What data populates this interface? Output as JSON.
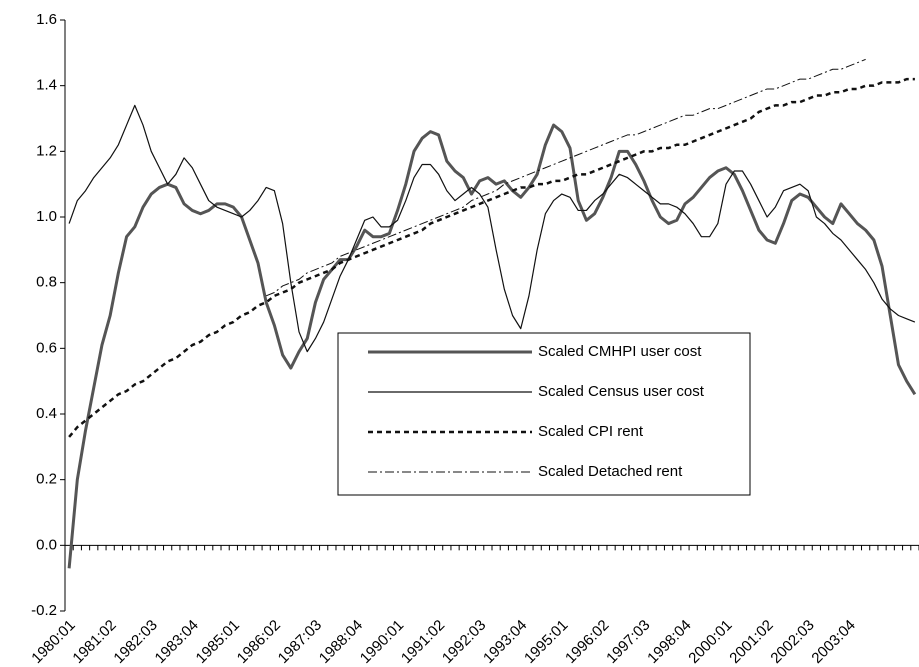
{
  "chart_data": {
    "type": "line",
    "categories": [
      "1980:01",
      null,
      null,
      null,
      null,
      "1981:02",
      null,
      null,
      null,
      null,
      "1982:03",
      null,
      null,
      null,
      null,
      "1983:04",
      null,
      null,
      null,
      null,
      "1985:01",
      null,
      null,
      null,
      null,
      "1986:02",
      null,
      null,
      null,
      null,
      "1987:03",
      null,
      null,
      null,
      null,
      "1988:04",
      null,
      null,
      null,
      null,
      "1990:01",
      null,
      null,
      null,
      null,
      "1991:02",
      null,
      null,
      null,
      null,
      "1992:03",
      null,
      null,
      null,
      null,
      "1993:04",
      null,
      null,
      null,
      null,
      "1995:01",
      null,
      null,
      null,
      null,
      "1996:02",
      null,
      null,
      null,
      null,
      "1997:03",
      null,
      null,
      null,
      null,
      "1998:04",
      null,
      null,
      null,
      null,
      "2000:01",
      null,
      null,
      null,
      null,
      "2001:02",
      null,
      null,
      null,
      null,
      "2002:03",
      null,
      null,
      null,
      null,
      "2003:04",
      null,
      null,
      null,
      null,
      null,
      null,
      null,
      null
    ],
    "series": [
      {
        "name": "Scaled CMHPI user cost",
        "color": "#555555",
        "linewidth": 3,
        "linestyle": "solid",
        "values": [
          -0.07,
          0.2,
          0.35,
          0.48,
          0.61,
          0.7,
          0.83,
          0.94,
          0.97,
          1.03,
          1.07,
          1.09,
          1.1,
          1.09,
          1.04,
          1.02,
          1.01,
          1.02,
          1.04,
          1.04,
          1.03,
          1.0,
          0.93,
          0.86,
          0.74,
          0.67,
          0.58,
          0.54,
          0.59,
          0.63,
          0.74,
          0.81,
          0.84,
          0.87,
          0.87,
          0.91,
          0.96,
          0.94,
          0.94,
          0.95,
          1.02,
          1.1,
          1.2,
          1.24,
          1.26,
          1.25,
          1.17,
          1.14,
          1.12,
          1.07,
          1.11,
          1.12,
          1.1,
          1.11,
          1.08,
          1.06,
          1.09,
          1.13,
          1.22,
          1.28,
          1.26,
          1.21,
          1.05,
          0.99,
          1.01,
          1.06,
          1.12,
          1.2,
          1.2,
          1.16,
          1.11,
          1.05,
          1.0,
          0.98,
          0.99,
          1.04,
          1.06,
          1.09,
          1.12,
          1.14,
          1.15,
          1.13,
          1.08,
          1.02,
          0.96,
          0.93,
          0.92,
          0.98,
          1.05,
          1.07,
          1.06,
          1.03,
          1.0,
          0.98,
          1.04,
          1.01,
          0.98,
          0.96,
          0.93,
          0.85,
          0.7,
          0.55,
          0.5,
          0.46
        ]
      },
      {
        "name": "Scaled Census user cost",
        "color": "#111111",
        "linewidth": 1.2,
        "linestyle": "solid",
        "values": [
          0.98,
          1.05,
          1.08,
          1.12,
          1.15,
          1.18,
          1.22,
          1.28,
          1.34,
          1.28,
          1.2,
          1.15,
          1.1,
          1.13,
          1.18,
          1.15,
          1.1,
          1.05,
          1.03,
          1.02,
          1.01,
          1.0,
          1.02,
          1.05,
          1.09,
          1.08,
          0.98,
          0.8,
          0.65,
          0.59,
          0.63,
          0.68,
          0.75,
          0.82,
          0.87,
          0.93,
          0.99,
          1.0,
          0.97,
          0.97,
          0.99,
          1.05,
          1.12,
          1.16,
          1.16,
          1.13,
          1.08,
          1.05,
          1.07,
          1.09,
          1.07,
          1.03,
          0.9,
          0.78,
          0.7,
          0.66,
          0.76,
          0.9,
          1.01,
          1.05,
          1.07,
          1.06,
          1.02,
          1.02,
          1.05,
          1.07,
          1.1,
          1.13,
          1.12,
          1.1,
          1.08,
          1.06,
          1.04,
          1.04,
          1.03,
          1.01,
          0.98,
          0.94,
          0.94,
          0.98,
          1.1,
          1.14,
          1.14,
          1.1,
          1.05,
          1.0,
          1.03,
          1.08,
          1.09,
          1.1,
          1.08,
          1.0,
          0.98,
          0.95,
          0.93,
          0.9,
          0.87,
          0.84,
          0.8,
          0.75,
          0.72,
          0.7,
          0.69,
          0.68
        ]
      },
      {
        "name": "Scaled CPI rent",
        "color": "#111111",
        "linewidth": 2.5,
        "linestyle": "dashed",
        "values": [
          0.33,
          0.36,
          0.38,
          0.4,
          0.42,
          0.44,
          0.46,
          0.47,
          0.49,
          0.5,
          0.52,
          0.54,
          0.56,
          0.57,
          0.59,
          0.61,
          0.62,
          0.64,
          0.65,
          0.67,
          0.68,
          0.7,
          0.71,
          0.73,
          0.74,
          0.76,
          0.77,
          0.78,
          0.8,
          0.81,
          0.82,
          0.83,
          0.84,
          0.86,
          0.87,
          0.88,
          0.89,
          0.9,
          0.91,
          0.92,
          0.93,
          0.94,
          0.95,
          0.96,
          0.98,
          0.99,
          1.0,
          1.01,
          1.02,
          1.03,
          1.04,
          1.05,
          1.06,
          1.07,
          1.08,
          1.09,
          1.09,
          1.1,
          1.1,
          1.11,
          1.11,
          1.12,
          1.13,
          1.13,
          1.14,
          1.15,
          1.16,
          1.17,
          1.18,
          1.19,
          1.2,
          1.2,
          1.21,
          1.21,
          1.22,
          1.22,
          1.23,
          1.24,
          1.25,
          1.26,
          1.27,
          1.28,
          1.29,
          1.3,
          1.32,
          1.33,
          1.34,
          1.34,
          1.35,
          1.35,
          1.36,
          1.37,
          1.37,
          1.38,
          1.38,
          1.39,
          1.39,
          1.4,
          1.4,
          1.41,
          1.41,
          1.41,
          1.42,
          1.42
        ]
      },
      {
        "name": "Scaled Detached rent",
        "color": "#111111",
        "linewidth": 1,
        "linestyle": "dash-dot",
        "values": [
          null,
          null,
          null,
          null,
          null,
          null,
          null,
          null,
          null,
          null,
          null,
          null,
          null,
          null,
          null,
          null,
          null,
          null,
          null,
          null,
          null,
          null,
          null,
          null,
          0.76,
          0.77,
          0.79,
          0.8,
          0.81,
          0.83,
          0.84,
          0.85,
          0.86,
          0.88,
          0.89,
          0.9,
          0.91,
          0.92,
          0.93,
          0.94,
          0.95,
          0.96,
          0.97,
          0.98,
          0.99,
          1.0,
          1.01,
          1.02,
          1.03,
          1.05,
          1.06,
          1.07,
          1.08,
          1.1,
          1.11,
          1.12,
          1.13,
          1.14,
          1.15,
          1.16,
          1.17,
          1.18,
          1.19,
          1.2,
          1.21,
          1.22,
          1.23,
          1.24,
          1.25,
          1.25,
          1.26,
          1.27,
          1.28,
          1.29,
          1.3,
          1.31,
          1.31,
          1.32,
          1.33,
          1.33,
          1.34,
          1.35,
          1.36,
          1.37,
          1.38,
          1.39,
          1.39,
          1.4,
          1.41,
          1.42,
          1.42,
          1.43,
          1.44,
          1.45,
          1.45,
          1.46,
          1.47,
          1.48,
          null,
          null,
          null,
          null,
          null,
          null
        ]
      }
    ],
    "ylim": [
      -0.2,
      1.6
    ],
    "yticks": [
      -0.2,
      {
        "value": 0,
        "label": "0.0"
      },
      0.2,
      0.4,
      0.6,
      0.8,
      {
        "value": 1,
        "label": "1.0"
      },
      1.2,
      1.4,
      1.6
    ],
    "grid": false
  }
}
